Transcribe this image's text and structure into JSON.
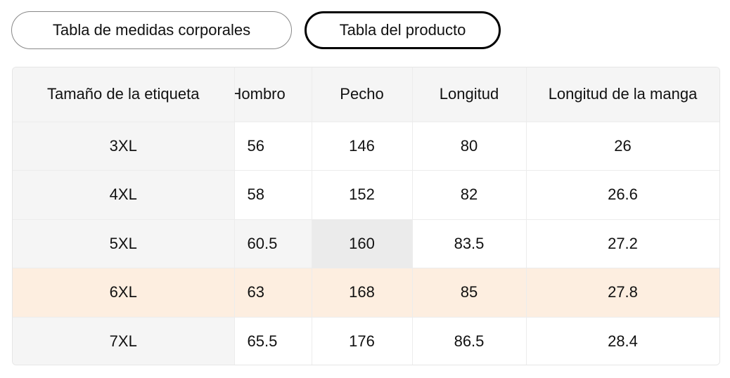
{
  "tabs": [
    {
      "label": "Tabla de medidas corporales",
      "active": false
    },
    {
      "label": "Tabla del producto",
      "active": true
    }
  ],
  "table": {
    "headers": [
      "Tamaño de la etiqueta",
      "Hombro",
      "Pecho",
      "Longitud",
      "Longitud de la manga"
    ],
    "rows": [
      [
        "3XL",
        "56",
        "146",
        "80",
        "26"
      ],
      [
        "4XL",
        "58",
        "152",
        "82",
        "26.6"
      ],
      [
        "5XL",
        "60.5",
        "160",
        "83.5",
        "27.2"
      ],
      [
        "6XL",
        "63",
        "168",
        "85",
        "27.8"
      ],
      [
        "7XL",
        "65.5",
        "176",
        "86.5",
        "28.4"
      ]
    ]
  },
  "colors": {
    "highlight_row": "#fdeee0",
    "header_bg": "#f5f5f5"
  }
}
